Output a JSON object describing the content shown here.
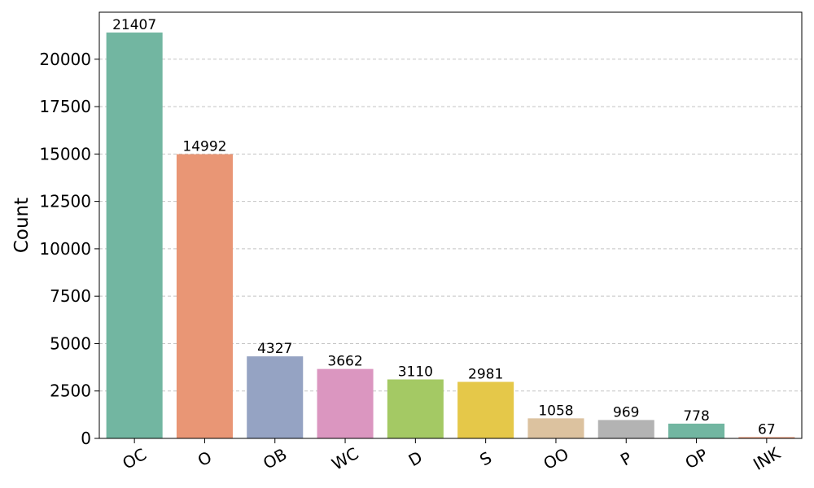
{
  "chart_data": {
    "type": "bar",
    "title": "",
    "xlabel": "",
    "ylabel": "Count",
    "categories": [
      "OC",
      "O",
      "OB",
      "WC",
      "D",
      "S",
      "OO",
      "P",
      "OP",
      "INK"
    ],
    "values": [
      21407,
      14992,
      4327,
      3662,
      3110,
      2981,
      1058,
      969,
      778,
      67
    ],
    "ylim": [
      0,
      22480
    ],
    "yticks": [
      0,
      2500,
      5000,
      7500,
      10000,
      12500,
      15000,
      17500,
      20000
    ],
    "grid": "y-dashed",
    "legend": "none",
    "colors": [
      "#72b6a1",
      "#e99675",
      "#95a3c3",
      "#db96c0",
      "#a4c964",
      "#e5c849",
      "#dcc29f",
      "#b3b3b3",
      "#72b6a1",
      "#e99675"
    ]
  }
}
